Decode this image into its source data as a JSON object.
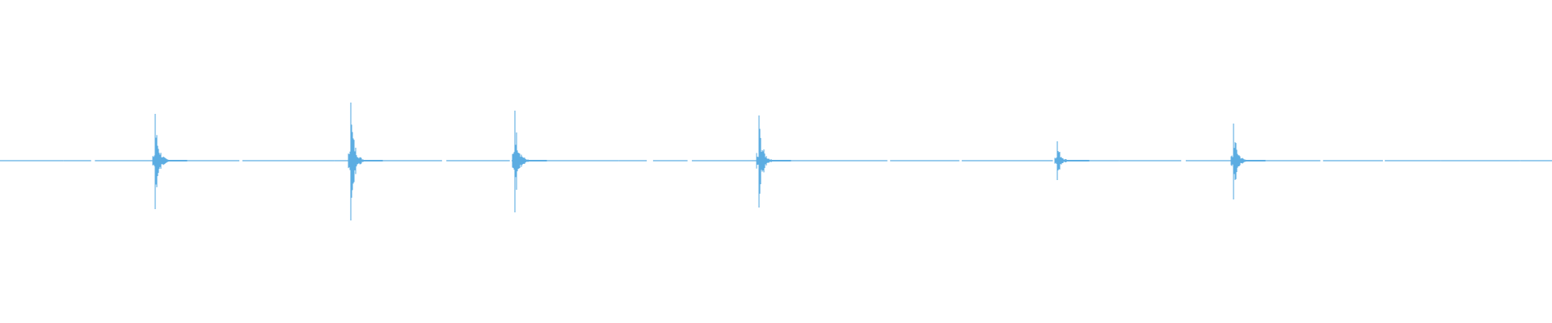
{
  "waveform": {
    "color": "#5dade2",
    "background": "#ffffff",
    "transients": [
      {
        "position": 0.1,
        "peak_up": 0.29,
        "peak_down": 0.3
      },
      {
        "position": 0.226,
        "peak_up": 0.36,
        "peak_down": 0.37
      },
      {
        "position": 0.332,
        "peak_up": 0.31,
        "peak_down": 0.32
      },
      {
        "position": 0.489,
        "peak_up": 0.28,
        "peak_down": 0.29
      },
      {
        "position": 0.681,
        "peak_up": 0.12,
        "peak_down": 0.12
      },
      {
        "position": 0.795,
        "peak_up": 0.23,
        "peak_down": 0.24
      }
    ]
  }
}
